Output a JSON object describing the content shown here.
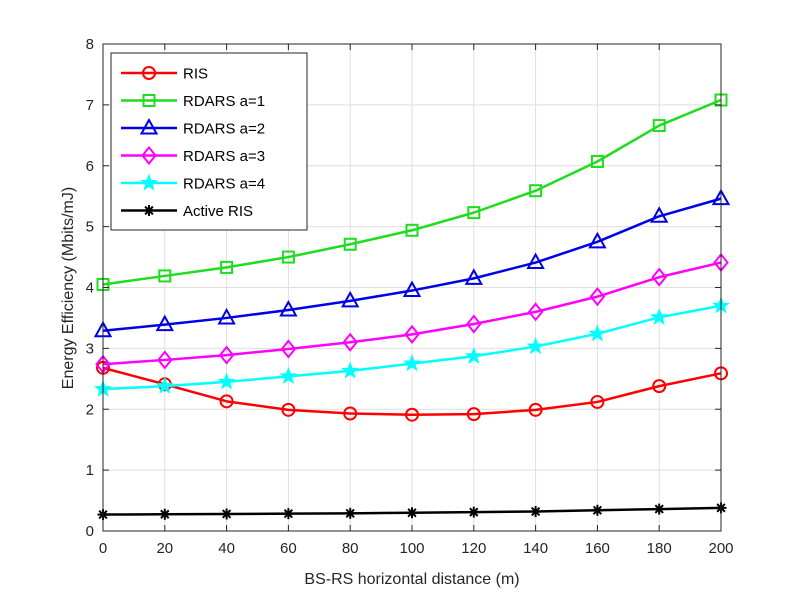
{
  "chart_data": {
    "type": "line",
    "title": "",
    "xlabel": "BS-RS horizontal distance (m)",
    "ylabel": "Energy Efficiency (Mbits/mJ)",
    "xlim": [
      0,
      200
    ],
    "ylim": [
      0,
      8
    ],
    "xticks": [
      0,
      20,
      40,
      60,
      80,
      100,
      120,
      140,
      160,
      180,
      200
    ],
    "yticks": [
      0,
      1,
      2,
      3,
      4,
      5,
      6,
      7,
      8
    ],
    "grid": true,
    "legend_position": "top-left",
    "x": [
      0,
      20,
      40,
      60,
      80,
      100,
      120,
      140,
      160,
      180,
      200
    ],
    "series": [
      {
        "name": "RIS",
        "color": "#ff0000",
        "marker": "circle",
        "values": [
          2.68,
          2.41,
          2.13,
          1.99,
          1.93,
          1.91,
          1.92,
          1.99,
          2.12,
          2.38,
          2.59
        ]
      },
      {
        "name": "RDARS a=1",
        "color": "#1fdc1f",
        "marker": "square",
        "values": [
          4.05,
          4.19,
          4.33,
          4.5,
          4.71,
          4.94,
          5.23,
          5.59,
          6.07,
          6.66,
          7.08
        ]
      },
      {
        "name": "RDARS a=2",
        "color": "#0000e6",
        "marker": "triangle",
        "values": [
          3.29,
          3.39,
          3.5,
          3.63,
          3.78,
          3.95,
          4.15,
          4.41,
          4.75,
          5.17,
          5.46
        ]
      },
      {
        "name": "RDARS a=3",
        "color": "#ff00ff",
        "marker": "diamond",
        "values": [
          2.74,
          2.81,
          2.89,
          2.99,
          3.1,
          3.23,
          3.4,
          3.6,
          3.85,
          4.17,
          4.41
        ]
      },
      {
        "name": "RDARS a=4",
        "color": "#00ffff",
        "marker": "star",
        "values": [
          2.33,
          2.38,
          2.45,
          2.54,
          2.63,
          2.75,
          2.87,
          3.03,
          3.24,
          3.51,
          3.7
        ]
      },
      {
        "name": "Active RIS",
        "color": "#000000",
        "marker": "asterisk",
        "values": [
          0.27,
          0.275,
          0.28,
          0.285,
          0.29,
          0.3,
          0.31,
          0.32,
          0.34,
          0.36,
          0.38
        ]
      }
    ]
  }
}
